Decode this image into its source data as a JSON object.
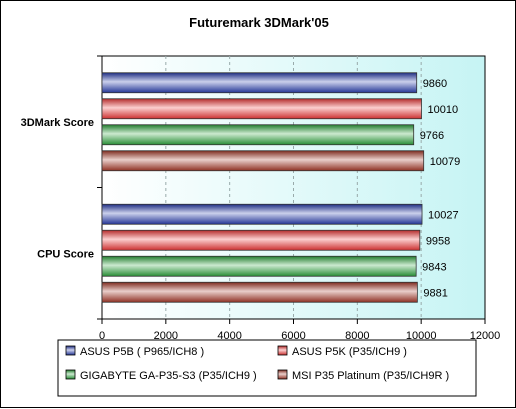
{
  "chart_data": {
    "type": "bar",
    "orientation": "horizontal",
    "title": "Futuremark 3DMark'05",
    "xlabel": "",
    "ylabel": "",
    "xlim": [
      0,
      12000
    ],
    "xticks": [
      0,
      2000,
      4000,
      6000,
      8000,
      10000,
      12000
    ],
    "grid": true,
    "legend_position": "bottom",
    "categories": [
      "3DMark Score",
      "CPU Score"
    ],
    "series": [
      {
        "name": "ASUS P5B ( P965/ICH8 )",
        "color": "#2a3fb0",
        "values": [
          9860,
          10027
        ]
      },
      {
        "name": "ASUS P5K (P35/ICH9 )",
        "color": "#f03a3a",
        "values": [
          10010,
          9958
        ]
      },
      {
        "name": "GIGABYTE GA-P35-S3 (P35/ICH9 )",
        "color": "#2fa63f",
        "values": [
          9766,
          9843
        ]
      },
      {
        "name": "MSI P35 Platinum (P35/ICH9R )",
        "color": "#a83a2a",
        "values": [
          10079,
          9881
        ]
      }
    ]
  }
}
